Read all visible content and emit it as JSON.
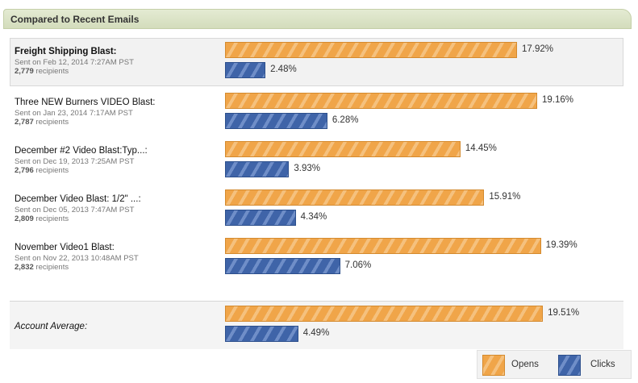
{
  "header": {
    "title": "Compared to Recent Emails"
  },
  "chart_data": {
    "type": "bar",
    "orientation": "horizontal",
    "series": [
      {
        "name": "Opens",
        "color": "#f0a549"
      },
      {
        "name": "Clicks",
        "color": "#3f64a8"
      }
    ],
    "rows": [
      {
        "name": "Freight Shipping Blast:",
        "sent": "Sent on Feb 12, 2014 7:27AM PST",
        "recipients": "2,779",
        "recipients_label": "recipients",
        "opens": 17.92,
        "opens_label": "17.92%",
        "clicks": 2.48,
        "clicks_label": "2.48%",
        "highlight": true
      },
      {
        "name": "Three NEW Burners VIDEO Blast:",
        "sent": "Sent on Jan 23, 2014 7:17AM PST",
        "recipients": "2,787",
        "recipients_label": "recipients",
        "opens": 19.16,
        "opens_label": "19.16%",
        "clicks": 6.28,
        "clicks_label": "6.28%"
      },
      {
        "name": "December #2 Video Blast:Typ...:",
        "sent": "Sent on Dec 19, 2013 7:25AM PST",
        "recipients": "2,796",
        "recipients_label": "recipients",
        "opens": 14.45,
        "opens_label": "14.45%",
        "clicks": 3.93,
        "clicks_label": "3.93%"
      },
      {
        "name": "December Video Blast: 1/2\" ...:",
        "sent": "Sent on Dec 05, 2013 7:47AM PST",
        "recipients": "2,809",
        "recipients_label": "recipients",
        "opens": 15.91,
        "opens_label": "15.91%",
        "clicks": 4.34,
        "clicks_label": "4.34%"
      },
      {
        "name": "November Video1 Blast:",
        "sent": "Sent on Nov 22, 2013 10:48AM PST",
        "recipients": "2,832",
        "recipients_label": "recipients",
        "opens": 19.39,
        "opens_label": "19.39%",
        "clicks": 7.06,
        "clicks_label": "7.06%"
      }
    ],
    "average": {
      "name": "Account Average:",
      "opens": 19.51,
      "opens_label": "19.51%",
      "clicks": 4.49,
      "clicks_label": "4.49%"
    },
    "xlim": [
      0,
      20
    ],
    "legend": {
      "opens": "Opens",
      "clicks": "Clicks",
      "position": "bottom-right"
    }
  }
}
